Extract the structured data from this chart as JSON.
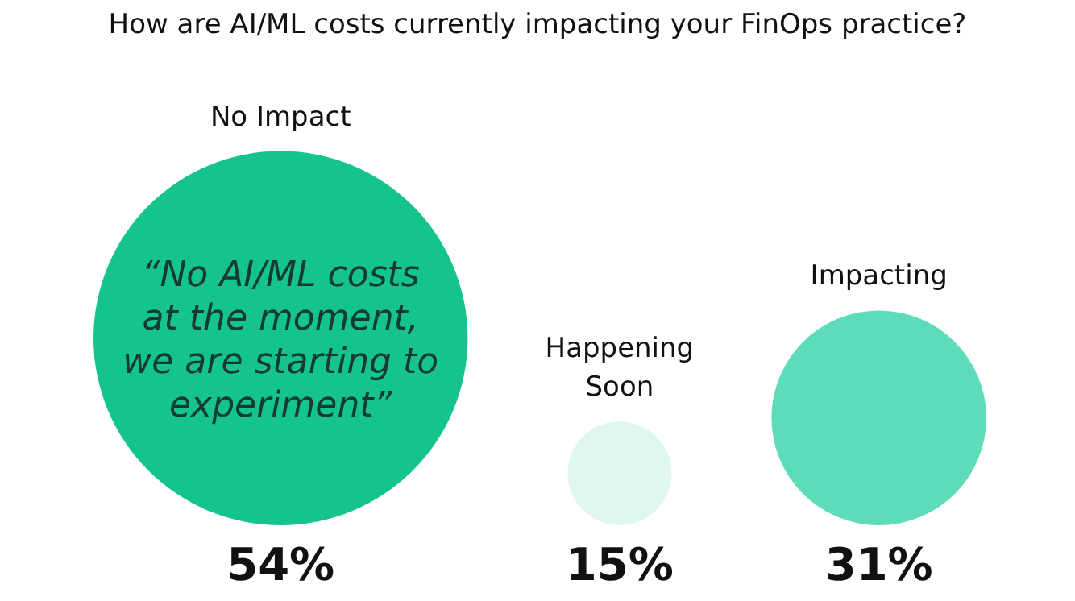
{
  "chart_data": {
    "type": "other",
    "title": "How are AI/ML costs currently impacting your FinOps practice?",
    "categories": [
      "No Impact",
      "Happening Soon",
      "Impacting"
    ],
    "values": [
      54,
      15,
      31
    ],
    "value_labels": [
      "54%",
      "15%",
      "31%"
    ],
    "colors": [
      "#14c38e",
      "#e0f7f1",
      "#5cdcb9"
    ],
    "annotations": [
      "“No AI/ML costs at the moment, we are starting to experiment”"
    ]
  }
}
